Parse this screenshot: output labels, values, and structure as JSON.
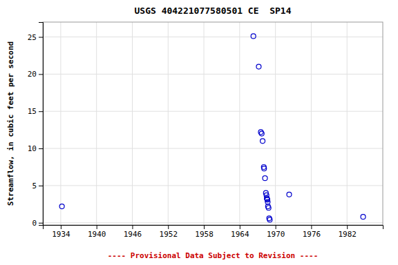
{
  "chart_data": {
    "type": "scatter",
    "title": "USGS 404221077580501 CE  SP14",
    "ylabel": "Streamflow, in cubic feet per second",
    "annotations": [
      "---- Provisional Data Subject to Revision ----"
    ],
    "x": [
      1934.2,
      1966.3,
      1967.2,
      1967.55,
      1967.7,
      1967.85,
      1968.05,
      1968.1,
      1968.25,
      1968.4,
      1968.5,
      1968.55,
      1968.6,
      1968.65,
      1968.7,
      1968.75,
      1968.85,
      1968.95,
      1969.05,
      1972.3,
      1984.7
    ],
    "values": [
      2.2,
      25.1,
      21.0,
      12.2,
      12.0,
      11.0,
      7.5,
      7.3,
      6.0,
      4.0,
      3.7,
      3.3,
      3.2,
      3.1,
      2.8,
      2.2,
      2.0,
      0.6,
      0.4,
      3.8,
      0.8
    ],
    "color": "#0000CC",
    "marker": "circle",
    "xlim": [
      1931,
      1988
    ],
    "ylim": [
      -0.3,
      27
    ],
    "xticks": [
      1934,
      1940,
      1946,
      1952,
      1958,
      1964,
      1970,
      1976,
      1982
    ],
    "yticks": [
      0,
      5,
      10,
      15,
      20,
      25
    ],
    "grid": true
  }
}
